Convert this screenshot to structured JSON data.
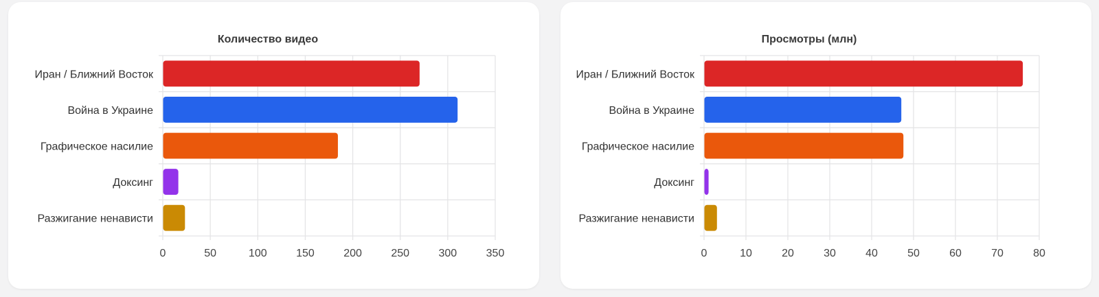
{
  "chart_data": [
    {
      "type": "bar",
      "orientation": "horizontal",
      "title": "Количество видео",
      "categories": [
        "Иран / Ближний Восток",
        "Война в Украине",
        "Графическое насилие",
        "Доксинг",
        "Разжигание ненависти"
      ],
      "values": [
        270,
        310,
        184,
        16,
        23
      ],
      "colors": [
        "#dc2626",
        "#2563eb",
        "#ea580c",
        "#9333ea",
        "#ca8a04"
      ],
      "xlim": [
        0,
        350
      ],
      "xticks": [
        "0",
        "50",
        "100",
        "150",
        "200",
        "250",
        "300",
        "350"
      ],
      "grid": true
    },
    {
      "type": "bar",
      "orientation": "horizontal",
      "title": "Просмотры (млн)",
      "categories": [
        "Иран / Ближний Восток",
        "Война в Украине",
        "Графическое насилие",
        "Доксинг",
        "Разжигание ненависти"
      ],
      "values": [
        76,
        47,
        47.5,
        1,
        3
      ],
      "colors": [
        "#dc2626",
        "#2563eb",
        "#ea580c",
        "#9333ea",
        "#ca8a04"
      ],
      "xlim": [
        0,
        80
      ],
      "xticks": [
        "0",
        "10",
        "20",
        "30",
        "40",
        "50",
        "60",
        "70",
        "80"
      ],
      "grid": true
    }
  ]
}
